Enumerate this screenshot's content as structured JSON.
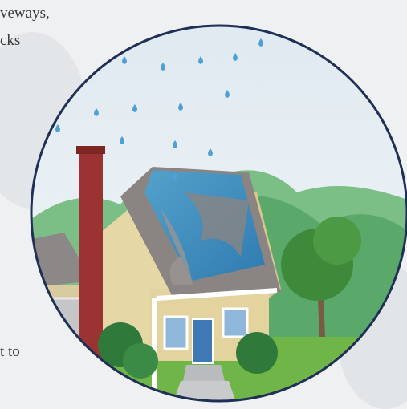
{
  "text_fragments": {
    "line_1": "veways,",
    "line_2": "cks",
    "line_3": "t to"
  }
}
